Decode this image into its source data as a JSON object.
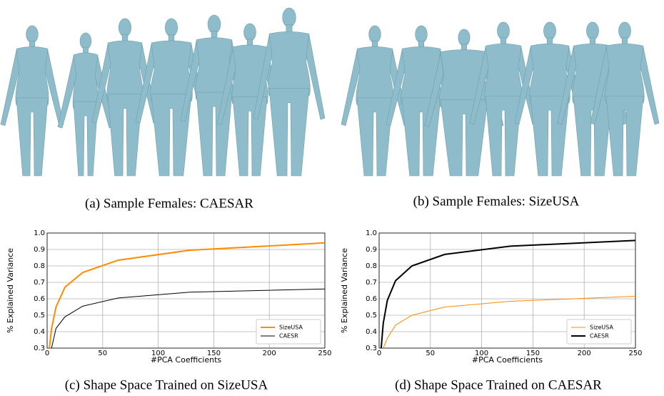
{
  "captions": [
    "(a) Sample Females: CAESAR",
    "(b) Sample Females: SizeUSA",
    "(c) Shape Space Trained on SizeUSA",
    "(d) Shape Space Trained on CAESAR"
  ],
  "chart_data": [
    {
      "type": "line",
      "x_label": "#PCA Coefficients",
      "y_label": "% Explained Variance",
      "x": [
        2,
        4,
        8,
        16,
        32,
        64,
        128,
        250
      ],
      "series": [
        {
          "name": "SizeUSA",
          "color": "#ff8c00",
          "line_width": 2,
          "values": [
            0.3,
            0.42,
            0.55,
            0.67,
            0.76,
            0.835,
            0.895,
            0.94
          ]
        },
        {
          "name": "CAESR",
          "color": "#000000",
          "line_width": 1,
          "values": [
            null,
            0.3,
            0.42,
            0.49,
            0.555,
            0.605,
            0.64,
            0.66
          ]
        }
      ],
      "xlim": [
        0,
        250
      ],
      "ylim": [
        0.3,
        1
      ],
      "xticks": [
        0,
        50,
        100,
        150,
        200,
        250
      ],
      "yticks": [
        0.3,
        0.4,
        0.5,
        0.6,
        0.7,
        0.8,
        0.9,
        {
          "value": 1,
          "label": "1.0"
        }
      ],
      "grid": true,
      "legend": "lower right"
    },
    {
      "type": "line",
      "x_label": "#PCA Coefficients",
      "y_label": "% Explained Variance",
      "x": [
        2,
        4,
        8,
        16,
        32,
        64,
        128,
        250
      ],
      "series": [
        {
          "name": "SizeUSA",
          "color": "#ff8c00",
          "line_width": 1,
          "values": [
            null,
            0.3,
            0.36,
            0.44,
            0.5,
            0.55,
            0.585,
            0.615
          ]
        },
        {
          "name": "CAESR",
          "color": "#000000",
          "line_width": 2,
          "values": [
            0.3,
            0.45,
            0.59,
            0.71,
            0.8,
            0.87,
            0.92,
            0.955
          ]
        }
      ],
      "xlim": [
        0,
        250
      ],
      "ylim": [
        0.3,
        1
      ],
      "xticks": [
        0,
        50,
        100,
        150,
        200,
        250
      ],
      "yticks": [
        0.3,
        0.4,
        0.5,
        0.6,
        0.7,
        0.8,
        0.9,
        {
          "value": 1,
          "label": "1.0"
        }
      ],
      "grid": true,
      "legend": "lower right"
    }
  ]
}
